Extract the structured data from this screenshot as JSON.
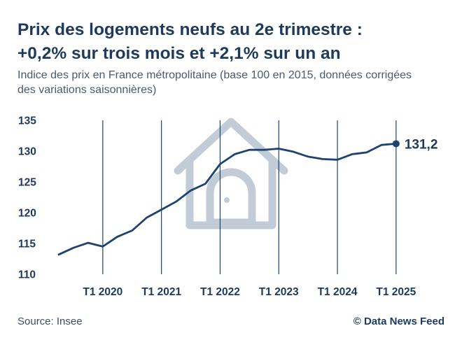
{
  "header": {
    "title_line1": "Prix des logements neufs au 2e trimestre :",
    "title_line2": "+0,2% sur trois mois et +2,1% sur un an",
    "subtitle_line1": "Indice des prix en France métropolitaine (base 100 en 2015, données corrigées",
    "subtitle_line2": "des variations saisonnières)"
  },
  "footer": {
    "source": "Source: Insee",
    "credit": "© Data News Feed"
  },
  "colors": {
    "line": "#1d4470",
    "text": "#1d3a5c",
    "gridline": "#1d4470",
    "watermark": "#c2ccd6"
  },
  "watermark_icon": "house-icon",
  "chart_data": {
    "type": "line",
    "title": "",
    "xlabel": "",
    "ylabel": "",
    "ylim": [
      110,
      135
    ],
    "yticks": [
      110,
      115,
      120,
      125,
      130,
      135
    ],
    "ytick_labels": [
      "110",
      "115",
      "120",
      "125",
      "130",
      "135"
    ],
    "x_start_year": 2019,
    "x_start_quarter": 2,
    "xticks": [
      {
        "index": 3,
        "label": "T1 2020"
      },
      {
        "index": 7,
        "label": "T1 2021"
      },
      {
        "index": 11,
        "label": "T1 2022"
      },
      {
        "index": 15,
        "label": "T1 2023"
      },
      {
        "index": 19,
        "label": "T1 2024"
      },
      {
        "index": 23,
        "label": "T1 2025"
      }
    ],
    "grid": "vertical lines at first quarters",
    "series": [
      {
        "values": [
          113.2,
          114.3,
          115.1,
          114.5,
          116.1,
          117.1,
          119.2,
          120.5,
          121.8,
          123.6,
          124.7,
          127.9,
          129.5,
          130.2,
          130.2,
          130.4,
          129.9,
          129.1,
          128.7,
          128.6,
          129.5,
          129.8,
          131.0,
          131.2
        ]
      }
    ],
    "end_label": "131,2"
  }
}
